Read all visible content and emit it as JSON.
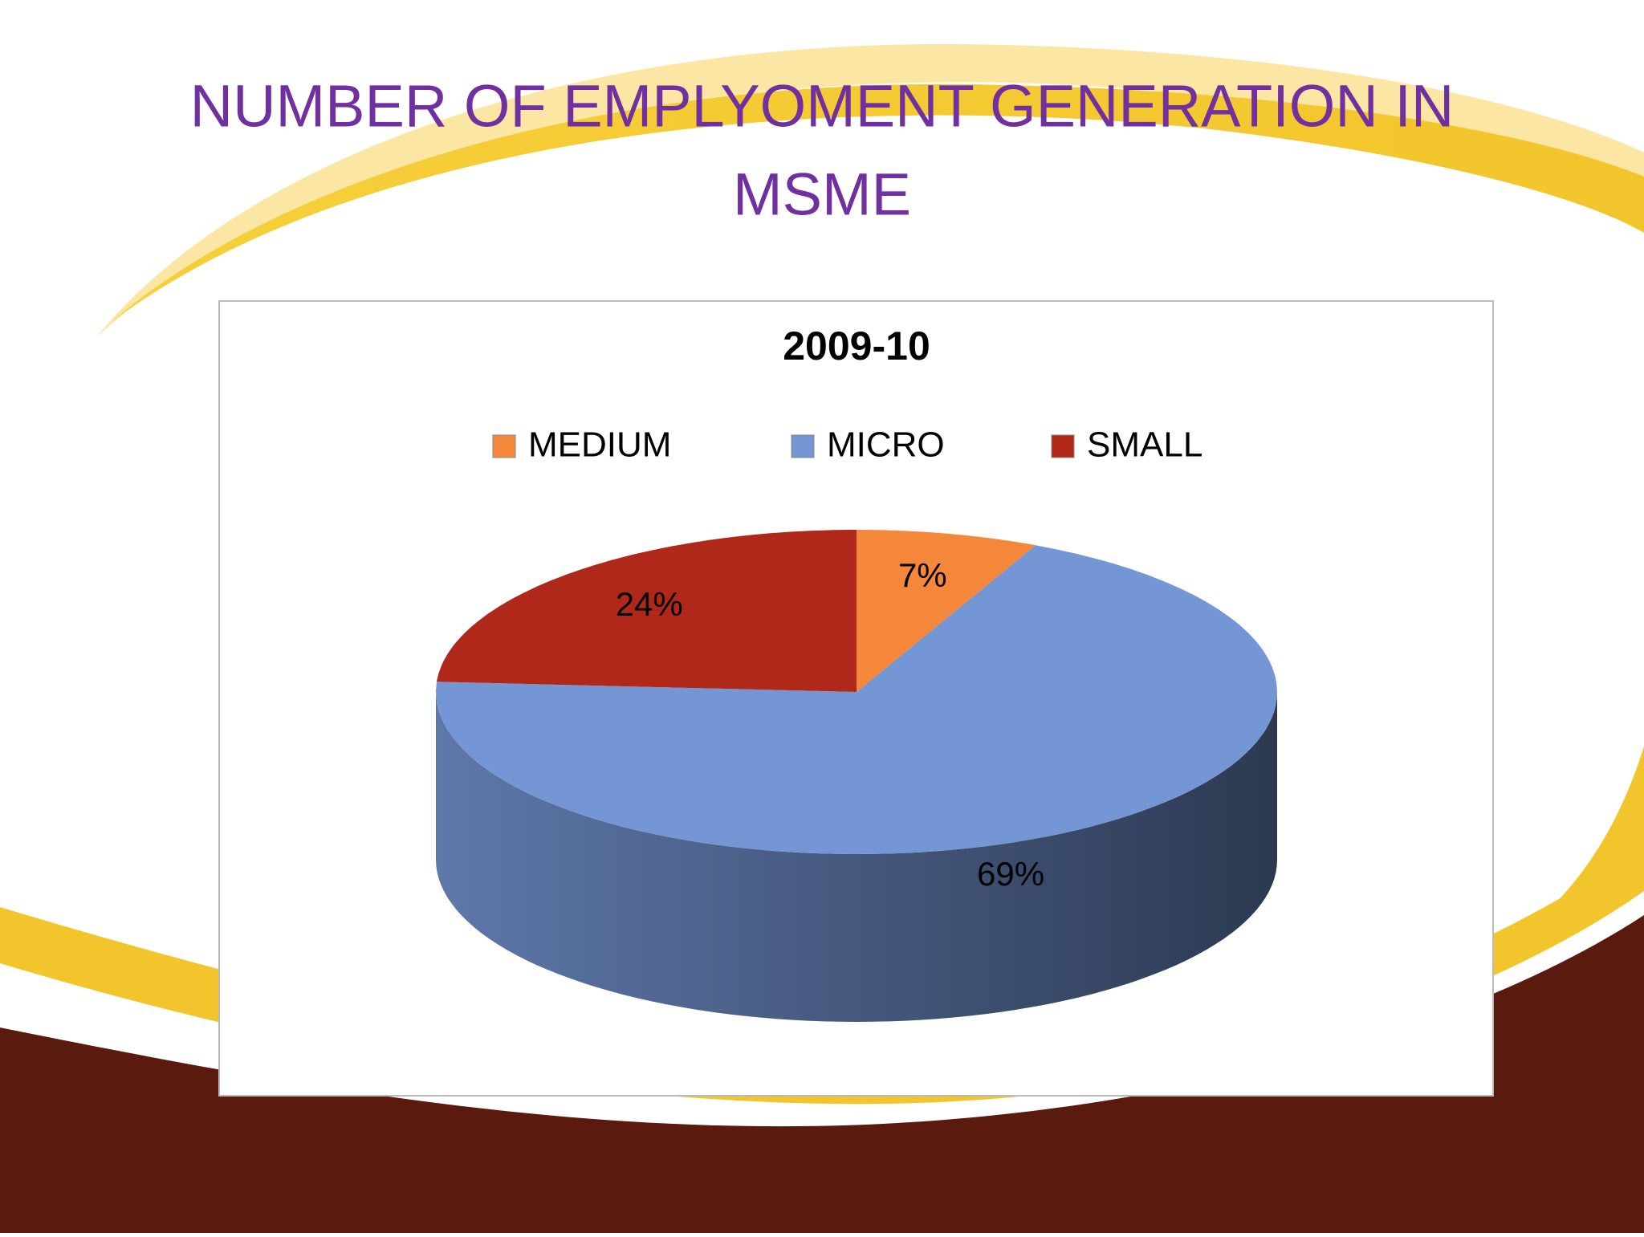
{
  "slide_title": "NUMBER OF EMPLYOMENT GENERATION IN MSME",
  "chart_data": {
    "type": "pie",
    "title": "2009-10",
    "categories": [
      "MEDIUM",
      "MICRO",
      "SMALL"
    ],
    "values": [
      7,
      69,
      24
    ],
    "value_labels": [
      "7%",
      "69%",
      "24%"
    ],
    "colors": [
      "#f5873a",
      "#7596d4",
      "#b0281a"
    ],
    "legend": "top"
  }
}
